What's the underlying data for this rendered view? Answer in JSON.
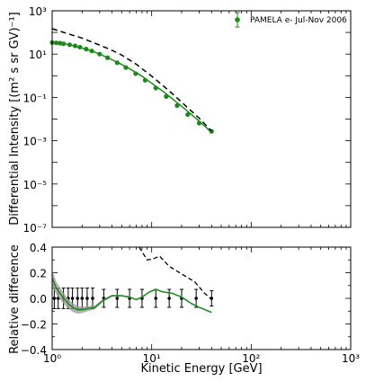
{
  "chart_data": [
    {
      "type": "line",
      "panel": "top",
      "xscale": "log",
      "yscale": "log",
      "xlim": [
        1,
        1000
      ],
      "ylim": [
        1e-07,
        1000
      ],
      "ylabel": "Differential Intensity [(m² s sr GV)⁻¹]",
      "x_tick_labels": [
        "10⁰",
        "10¹",
        "10²",
        "10³"
      ],
      "y_tick_labels": [
        "10⁻⁷",
        "10⁻⁵",
        "10⁻³",
        "10⁻¹",
        "10¹",
        "10³"
      ],
      "legend": {
        "label": "PAMELA e- Jul-Nov 2006",
        "placement": "top-right"
      },
      "series": [
        {
          "name": "PAMELA e- Jul-Nov 2006",
          "style": "points",
          "color": "#1a8a1a",
          "x": [
            1.0,
            1.1,
            1.2,
            1.3,
            1.5,
            1.7,
            1.9,
            2.2,
            2.5,
            3.0,
            3.6,
            4.5,
            5.5,
            6.9,
            8.6,
            11.0,
            14.0,
            18.0,
            23.0,
            30.0,
            40.0
          ],
          "y": [
            34,
            33,
            32,
            30,
            27,
            24,
            21,
            17,
            14,
            10,
            6.8,
            4.0,
            2.4,
            1.25,
            0.62,
            0.27,
            0.11,
            0.042,
            0.016,
            0.0065,
            0.0027
          ]
        },
        {
          "style": "solid",
          "color": "#1a8a1a",
          "x": [
            1.0,
            1.2,
            1.5,
            2.0,
            2.5,
            3.0,
            4.0,
            5.0,
            6.0,
            8.0,
            10.0,
            13.0,
            17.0,
            22.0,
            30.0,
            40.0
          ],
          "y": [
            36,
            32,
            27,
            19,
            14,
            10,
            5.5,
            3.3,
            2.1,
            0.95,
            0.45,
            0.19,
            0.07,
            0.027,
            0.008,
            0.0024
          ]
        },
        {
          "style": "dashed",
          "color": "#000000",
          "x": [
            1.0,
            1.5,
            2.0,
            3.0,
            4.0,
            5.0,
            7.0,
            10.0,
            13.0,
            17.0,
            22.0,
            30.0,
            40.0
          ],
          "y": [
            150,
            82,
            55,
            26,
            15,
            9.0,
            3.4,
            0.95,
            0.35,
            0.12,
            0.04,
            0.011,
            0.0028
          ]
        }
      ]
    },
    {
      "type": "line",
      "panel": "bottom",
      "xscale": "log",
      "xlim": [
        1,
        1000
      ],
      "ylim": [
        -0.4,
        0.4
      ],
      "xlabel": "Kinetic Energy [GeV]",
      "ylabel": "Relative difference",
      "x_tick_labels": [
        "10⁰",
        "10¹",
        "10²",
        "10³"
      ],
      "y_tick_labels": [
        "−0.4",
        "−0.2",
        "0.0",
        "0.2",
        "0.4"
      ],
      "series": [
        {
          "style": "points-errorbars",
          "color": "#000000",
          "x": [
            1.05,
            1.15,
            1.3,
            1.45,
            1.6,
            1.8,
            2.0,
            2.25,
            2.55,
            3.3,
            4.5,
            6.0,
            8.0,
            11.0,
            15.0,
            20.0,
            28.0,
            40.0
          ],
          "y": [
            0,
            0,
            0,
            0,
            0,
            0,
            0,
            0,
            0,
            0,
            0,
            0,
            0,
            0,
            0,
            0,
            0,
            0
          ],
          "yerr": [
            0.08,
            0.08,
            0.08,
            0.08,
            0.08,
            0.08,
            0.08,
            0.08,
            0.08,
            0.07,
            0.07,
            0.07,
            0.07,
            0.07,
            0.07,
            0.07,
            0.07,
            0.06
          ]
        },
        {
          "style": "solid",
          "color": "#1a8a1a",
          "band": true,
          "x": [
            1.0,
            1.1,
            1.25,
            1.4,
            1.6,
            1.8,
            2.0,
            2.3,
            2.7,
            3.2,
            4.0,
            5.0,
            6.0,
            7.0,
            8.0,
            9.5,
            11.0,
            13.0,
            16.0,
            20.0,
            25.0,
            30.0,
            40.0
          ],
          "y": [
            0.16,
            0.08,
            0.02,
            -0.03,
            -0.07,
            -0.09,
            -0.09,
            -0.08,
            -0.07,
            -0.02,
            0.02,
            0.02,
            0.01,
            -0.01,
            0.01,
            0.05,
            0.07,
            0.05,
            0.04,
            0.01,
            -0.04,
            -0.07,
            -0.11
          ],
          "band_halfwidth": [
            0.06,
            0.05,
            0.045,
            0.04,
            0.035,
            0.03,
            0.025,
            0.02,
            0.015,
            0.01,
            0.008,
            0.006,
            0.005,
            0.005,
            0.005,
            0.005,
            0.005,
            0.005,
            0.005,
            0.005,
            0.005,
            0.005,
            0.005
          ]
        },
        {
          "style": "dashed",
          "color": "#000000",
          "x": [
            7.5,
            9.0,
            10.5,
            12.0,
            15.0,
            20.0,
            27.0,
            34.0,
            40.0
          ],
          "y": [
            0.4,
            0.3,
            0.31,
            0.33,
            0.25,
            0.19,
            0.13,
            0.04,
            -0.01
          ]
        }
      ]
    }
  ]
}
